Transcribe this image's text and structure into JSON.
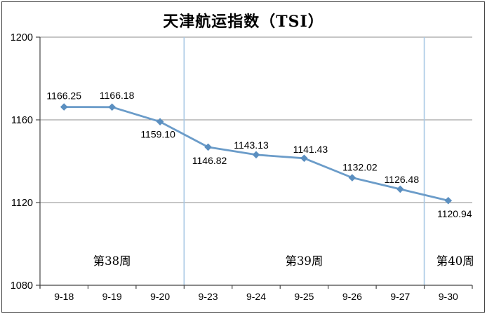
{
  "chart": {
    "title": "天津航运指数（TSI）",
    "type": "line"
  },
  "chart_data": {
    "type": "line",
    "title": "天津航运指数（TSI）",
    "categories": [
      "9-18",
      "9-19",
      "9-20",
      "9-23",
      "9-24",
      "9-25",
      "9-26",
      "9-27",
      "9-30"
    ],
    "values": [
      1166.25,
      1166.18,
      1159.1,
      1146.82,
      1143.13,
      1141.43,
      1132.02,
      1126.48,
      1120.94
    ],
    "data_labels": [
      "1166.25",
      "1166.18",
      "1159.10",
      "1146.82",
      "1143.13",
      "1141.43",
      "1132.02",
      "1126.48",
      "1120.94"
    ],
    "xlabel": "",
    "ylabel": "",
    "ylim": [
      1080,
      1200
    ],
    "y_ticks": [
      "1200",
      "1160",
      "1120",
      "1080"
    ],
    "y_tick_values": [
      1200,
      1160,
      1120,
      1080
    ],
    "grid": "horizontal",
    "legend": "none",
    "marker": "diamond",
    "separators_after_index": [
      2,
      7
    ],
    "annotations": [
      {
        "label": "第38周",
        "section_start": 0,
        "section_end": 3
      },
      {
        "label": "第39周",
        "section_start": 3,
        "section_end": 8
      },
      {
        "label": "第40周",
        "section_start": 8,
        "section_end": 9
      }
    ],
    "colors": {
      "line": "#6B9CC9",
      "marker": "#5B8FC0",
      "separator": "#A8C8E4",
      "gridline": "#8C8C8C",
      "axis": "#454545",
      "border": "#454545",
      "text": "#000000"
    }
  }
}
